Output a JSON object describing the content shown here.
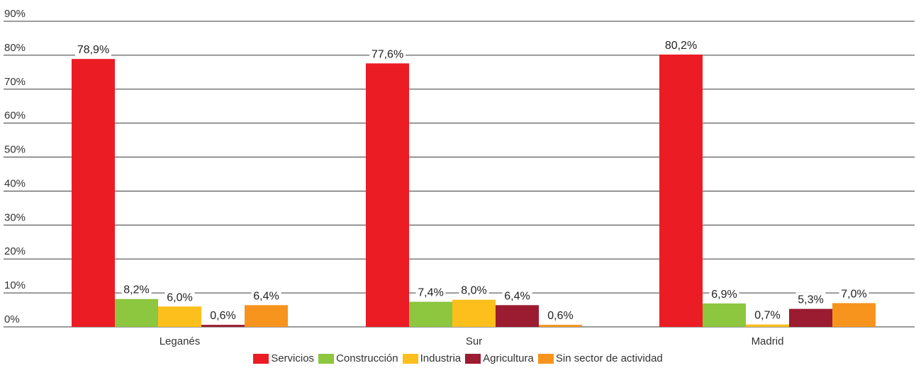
{
  "chart_data": {
    "type": "bar",
    "categories": [
      "Leganés",
      "Sur",
      "Madrid"
    ],
    "y_ticks": [
      "0%",
      "10%",
      "20%",
      "30%",
      "40%",
      "50%",
      "60%",
      "70%",
      "80%",
      "90%"
    ],
    "ylim": [
      0,
      90
    ],
    "grid": true,
    "legend_position": "bottom",
    "series": [
      {
        "name": "Servicios",
        "color": "#ec1c24",
        "values": [
          78.9,
          77.6,
          80.2
        ],
        "labels": [
          "78,9%",
          "77,6%",
          "80,2%"
        ]
      },
      {
        "name": "Construcción",
        "color": "#8dc63f",
        "values": [
          8.2,
          7.4,
          6.9
        ],
        "labels": [
          "8,2%",
          "7,4%",
          "6,9%"
        ]
      },
      {
        "name": "Industria",
        "color": "#fdbf1c",
        "values": [
          6.0,
          8.0,
          0.7
        ],
        "labels": [
          "6,0%",
          "8,0%",
          "0,7%"
        ]
      },
      {
        "name": "Agricultura",
        "color": "#9b1b30",
        "values": [
          0.6,
          6.4,
          5.3
        ],
        "labels": [
          "0,6%",
          "6,4%",
          "5,3%"
        ]
      },
      {
        "name": "Sin sector de actividad",
        "color": "#f7941d",
        "values": [
          6.4,
          0.6,
          7.0
        ],
        "labels": [
          "6,4%",
          "0,6%",
          "7,0%"
        ]
      }
    ]
  }
}
